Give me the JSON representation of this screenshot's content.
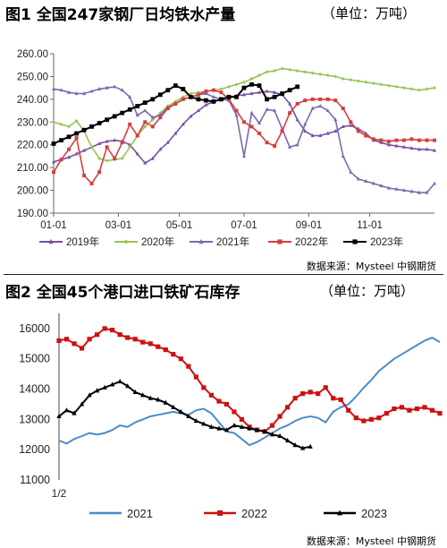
{
  "figure1": {
    "title": "图1 全国247家钢厂日均铁水产量",
    "unit": "（单位：万吨）",
    "source": "数据来源：Mysteel 中钢期货"
  },
  "figure2": {
    "title": "图2 全国45个港口进口铁矿石库存",
    "unit": "（单位：万吨）",
    "source": "数据来源：Mysteel 中钢期货"
  },
  "colors": {
    "s2019": "#7b4fa3",
    "s2020": "#99c355",
    "s2021": "#7b68b0",
    "s2022": "#d33f3f",
    "s2023": "#000000",
    "c2021": "#4a8cc7",
    "c2022": "#cc1111",
    "c2023": "#000000"
  },
  "chart_data": [
    {
      "type": "line",
      "title": "图1 全国247家钢厂日均铁水产量",
      "ylim": [
        190,
        260
      ],
      "yticks": [
        "190.00",
        "200.00",
        "210.00",
        "220.00",
        "230.00",
        "240.00",
        "250.00",
        "260.00"
      ],
      "xticks": [
        "01-01",
        "03-01",
        "05-01",
        "07-01",
        "09-01",
        "11-01"
      ],
      "legend_position": "bottom",
      "series": [
        {
          "name": "2019年",
          "color_key": "s2019",
          "marker": "triangle",
          "x": [
            0,
            1,
            2,
            3,
            4,
            5,
            6,
            7,
            8,
            9,
            10,
            11,
            12,
            13,
            14,
            15,
            16,
            17,
            18,
            19,
            20,
            21,
            22,
            23,
            24,
            25,
            26,
            27,
            28,
            29,
            30,
            31,
            32,
            33,
            34,
            35,
            36,
            37,
            38,
            39,
            40,
            41,
            42,
            43,
            44,
            45,
            46,
            47,
            48,
            49,
            50
          ],
          "values": [
            212.5,
            213.5,
            214.5,
            216,
            217.5,
            219,
            220.5,
            221.5,
            222,
            221.5,
            220,
            216,
            212,
            214,
            218,
            221,
            225,
            229,
            232.5,
            235,
            237.5,
            239,
            240,
            241,
            241.5,
            242,
            242.5,
            243,
            243.5,
            243,
            242,
            238,
            231,
            226,
            224,
            224,
            225,
            226,
            228,
            228.5,
            227,
            225,
            222,
            221,
            220,
            219.5,
            219,
            218.5,
            218,
            218,
            217.5
          ]
        },
        {
          "name": "2020年",
          "color_key": "s2020",
          "marker": "diamond",
          "x": [
            0,
            1,
            2,
            3,
            4,
            5,
            6,
            7,
            8,
            9,
            10,
            11,
            12,
            13,
            14,
            15,
            16,
            17,
            18,
            19,
            20,
            21,
            22,
            23,
            24,
            25,
            26,
            27,
            28,
            29,
            30,
            31,
            32,
            33,
            34,
            35,
            36,
            37,
            38,
            39,
            40,
            41,
            42,
            43,
            44,
            45,
            46,
            47,
            48,
            49,
            50
          ],
          "values": [
            230,
            229,
            228,
            230.5,
            226,
            219,
            214,
            213,
            213.5,
            214,
            219,
            224,
            228,
            231,
            234,
            237,
            239,
            241,
            242.5,
            243,
            243.5,
            244,
            244.5,
            245.5,
            246.5,
            247.5,
            249,
            250.5,
            252,
            252.5,
            253.5,
            253,
            252.5,
            252,
            251.5,
            251,
            250.5,
            250,
            249,
            248.5,
            248,
            247.5,
            247,
            246.5,
            246,
            245.5,
            245,
            244.5,
            244,
            244.5,
            245
          ]
        },
        {
          "name": "2021年",
          "color_key": "s2021",
          "marker": "triangle",
          "x": [
            0,
            1,
            2,
            3,
            4,
            5,
            6,
            7,
            8,
            9,
            10,
            11,
            12,
            13,
            14,
            15,
            16,
            17,
            18,
            19,
            20,
            21,
            22,
            23,
            24,
            25,
            26,
            27,
            28,
            29,
            30,
            31,
            32,
            33,
            34,
            35,
            36,
            37,
            38,
            39,
            40,
            41,
            42,
            43,
            44,
            45,
            46,
            47,
            48,
            49,
            50
          ],
          "values": [
            244.5,
            244,
            243,
            242.5,
            242.5,
            243.5,
            244.5,
            245,
            245.5,
            244,
            241,
            233,
            235,
            232,
            233,
            236.5,
            238,
            240,
            241,
            242,
            242.5,
            241,
            240,
            239.5,
            233,
            215,
            234,
            229.5,
            235.5,
            235,
            227,
            219,
            220,
            229,
            236,
            237,
            235,
            231,
            215,
            208,
            205,
            204,
            203,
            202,
            201,
            200.5,
            200,
            199.5,
            199,
            199,
            203
          ]
        },
        {
          "name": "2022年",
          "color_key": "s2022",
          "marker": "square",
          "x": [
            0,
            1,
            2,
            3,
            4,
            5,
            6,
            7,
            8,
            9,
            10,
            11,
            12,
            13,
            14,
            15,
            16,
            17,
            18,
            19,
            20,
            21,
            22,
            23,
            24,
            25,
            26,
            27,
            28,
            29,
            30,
            31,
            32,
            33,
            34,
            35,
            36,
            37,
            38,
            39,
            40,
            41,
            42,
            43,
            44,
            45,
            46,
            47,
            48,
            49,
            50
          ],
          "values": [
            208,
            213.5,
            218,
            223,
            206.5,
            203,
            208,
            219,
            214,
            221,
            229,
            224,
            230,
            228,
            232,
            236,
            238,
            240,
            241,
            242,
            243.5,
            244,
            243,
            240,
            235,
            230,
            228,
            225,
            221,
            219.5,
            226,
            234,
            238,
            239.5,
            240,
            240,
            240,
            239.5,
            236,
            230,
            226,
            224,
            222.5,
            222,
            221.5,
            222,
            222,
            222.5,
            222,
            222,
            222
          ]
        },
        {
          "name": "2023年",
          "color_key": "s2023",
          "marker": "square",
          "x": [
            0,
            1,
            2,
            3,
            4,
            5,
            6,
            7,
            8,
            9,
            10,
            11,
            12,
            13,
            14,
            15,
            16,
            17,
            18,
            19,
            20,
            21,
            22,
            23,
            24,
            25,
            26,
            27,
            28,
            29,
            30,
            31,
            32
          ],
          "values": [
            220.5,
            222,
            223.5,
            225,
            226.5,
            228,
            229.5,
            231,
            232.5,
            234,
            235.5,
            237,
            238.5,
            240,
            242,
            244,
            246,
            244.5,
            241,
            240,
            239.5,
            239,
            240,
            241,
            241,
            245,
            246.5,
            246,
            240,
            241,
            242.5,
            244,
            245.5
          ]
        }
      ]
    },
    {
      "type": "line",
      "title": "图2 全国45个港口进口铁矿石库存",
      "ylim": [
        11000,
        16500
      ],
      "yticks": [
        "11000",
        "12000",
        "13000",
        "14000",
        "15000",
        "16000"
      ],
      "xticks": [
        "1/2"
      ],
      "legend_position": "bottom",
      "series": [
        {
          "name": "2021",
          "color_key": "c2021",
          "marker": "none",
          "x": [
            0,
            1,
            2,
            3,
            4,
            5,
            6,
            7,
            8,
            9,
            10,
            11,
            12,
            13,
            14,
            15,
            16,
            17,
            18,
            19,
            20,
            21,
            22,
            23,
            24,
            25,
            26,
            27,
            28,
            29,
            30,
            31,
            32,
            33,
            34,
            35,
            36,
            37,
            38,
            39,
            40,
            41,
            42,
            43,
            44,
            45,
            46,
            47,
            48,
            49,
            50
          ],
          "values": [
            12300,
            12200,
            12350,
            12450,
            12550,
            12500,
            12550,
            12650,
            12800,
            12750,
            12900,
            13000,
            13100,
            13150,
            13200,
            13250,
            13200,
            13150,
            13300,
            13350,
            13200,
            12900,
            12600,
            12550,
            12350,
            12150,
            12250,
            12400,
            12550,
            12700,
            12800,
            12950,
            13050,
            13100,
            13050,
            12900,
            13250,
            13400,
            13500,
            13750,
            14050,
            14300,
            14600,
            14800,
            15000,
            15150,
            15300,
            15450,
            15600,
            15700,
            15550
          ]
        },
        {
          "name": "2022",
          "color_key": "c2022",
          "marker": "square",
          "x": [
            0,
            1,
            2,
            3,
            4,
            5,
            6,
            7,
            8,
            9,
            10,
            11,
            12,
            13,
            14,
            15,
            16,
            17,
            18,
            19,
            20,
            21,
            22,
            23,
            24,
            25,
            26,
            27,
            28,
            29,
            30,
            31,
            32,
            33,
            34,
            35,
            36,
            37,
            38,
            39,
            40,
            41,
            42,
            43,
            44,
            45,
            46,
            47,
            48,
            49,
            50
          ],
          "values": [
            15600,
            15650,
            15500,
            15350,
            15650,
            15800,
            16000,
            15950,
            15800,
            15700,
            15650,
            15550,
            15500,
            15400,
            15300,
            15150,
            15000,
            14750,
            14400,
            14050,
            13800,
            13600,
            13500,
            13250,
            13000,
            12750,
            12650,
            12600,
            12800,
            13100,
            13400,
            13700,
            13850,
            13900,
            13850,
            14050,
            13700,
            13650,
            13300,
            13050,
            12950,
            13000,
            13050,
            13200,
            13350,
            13400,
            13300,
            13350,
            13400,
            13300,
            13200
          ]
        },
        {
          "name": "2023",
          "color_key": "c2023",
          "marker": "triangle",
          "x": [
            0,
            1,
            2,
            3,
            4,
            5,
            6,
            7,
            8,
            9,
            10,
            11,
            12,
            13,
            14,
            15,
            16,
            17,
            18,
            19,
            20,
            21,
            22,
            23,
            24,
            25,
            26,
            27,
            28,
            29,
            30,
            31,
            32,
            33
          ],
          "values": [
            13100,
            13300,
            13200,
            13500,
            13800,
            13950,
            14050,
            14150,
            14250,
            14100,
            13900,
            13800,
            13700,
            13650,
            13550,
            13400,
            13250,
            13100,
            12950,
            12850,
            12750,
            12700,
            12650,
            12800,
            12750,
            12700,
            12650,
            12600,
            12500,
            12450,
            12300,
            12150,
            12050,
            12100
          ]
        }
      ]
    }
  ]
}
